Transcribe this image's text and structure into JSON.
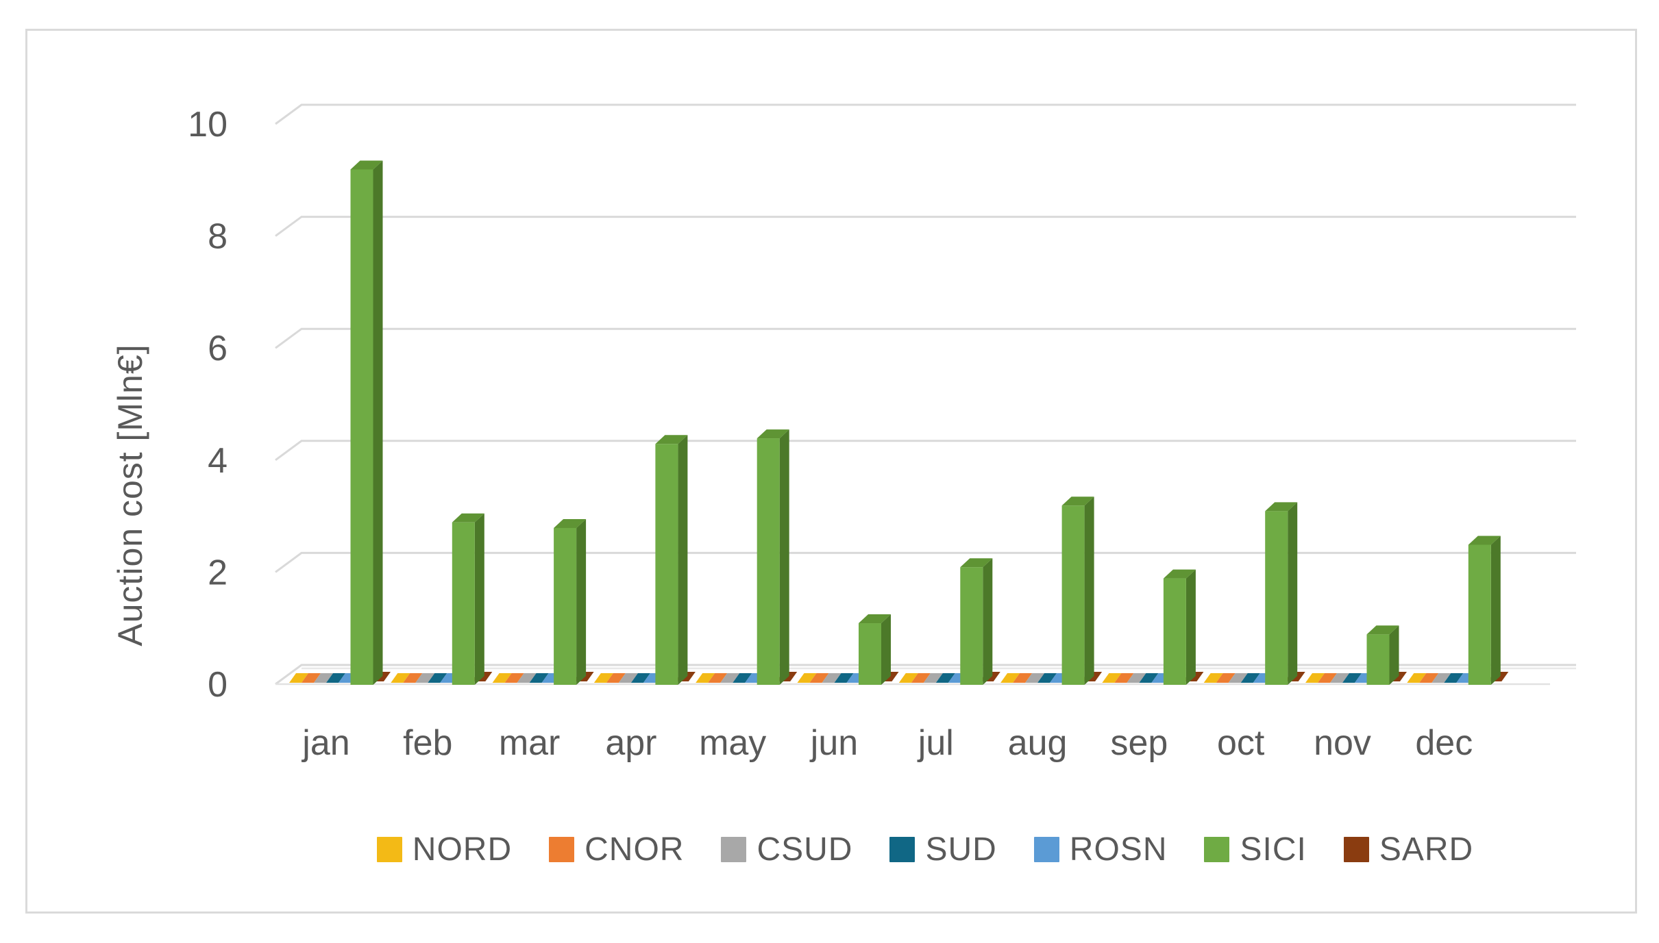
{
  "chart_data": {
    "type": "bar",
    "projection": "3d",
    "title": "",
    "xlabel": "",
    "ylabel": "Auction cost [Mln€]",
    "ylim": [
      0,
      10
    ],
    "yticks": [
      0,
      2,
      4,
      6,
      8,
      10
    ],
    "grid": true,
    "legend_position": "bottom",
    "categories": [
      "jan",
      "feb",
      "mar",
      "apr",
      "may",
      "jun",
      "jul",
      "aug",
      "sep",
      "oct",
      "nov",
      "dec"
    ],
    "series": [
      {
        "name": "NORD",
        "color": "#F3BA16",
        "values": [
          0,
          0,
          0,
          0,
          0,
          0,
          0,
          0,
          0,
          0,
          0,
          0
        ]
      },
      {
        "name": "CNOR",
        "color": "#ED7D31",
        "values": [
          0,
          0,
          0,
          0,
          0,
          0,
          0,
          0,
          0,
          0,
          0,
          0
        ]
      },
      {
        "name": "CSUD",
        "color": "#A8A8A8",
        "values": [
          0,
          0,
          0,
          0,
          0,
          0,
          0,
          0,
          0,
          0,
          0,
          0
        ]
      },
      {
        "name": "SUD",
        "color": "#106785",
        "values": [
          0,
          0,
          0,
          0,
          0,
          0,
          0,
          0,
          0,
          0,
          0,
          0
        ]
      },
      {
        "name": "ROSN",
        "color": "#5B9BD5",
        "values": [
          0,
          0,
          0,
          0,
          0,
          0,
          0,
          0,
          0,
          0,
          0,
          0
        ]
      },
      {
        "name": "SICI",
        "color": "#6FAB44",
        "bar_faces": {
          "front": "#6FAB44",
          "top": "#5F9434",
          "side": "#4C7929"
        },
        "values": [
          9.2,
          2.9,
          2.8,
          4.3,
          4.4,
          1.1,
          2.1,
          3.2,
          1.9,
          3.1,
          0.9,
          2.5
        ]
      },
      {
        "name": "SARD",
        "color": "#8A3C10",
        "values": [
          0,
          0,
          0,
          0,
          0,
          0,
          0,
          0,
          0,
          0,
          0,
          0
        ]
      }
    ],
    "style": {
      "gridline_color": "#D9D9D9",
      "floor_edge_color": "#E2E2E2",
      "text_color": "#595959",
      "frame_border_color": "#DADADA",
      "background": "#FFFFFF"
    }
  }
}
